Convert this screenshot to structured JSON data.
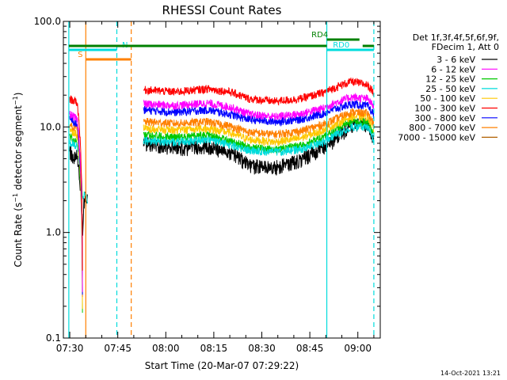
{
  "chart_data": {
    "type": "line",
    "title": "RHESSI Count Rates",
    "xlabel": "Start Time (20-Mar-07 07:29:22)",
    "ylabel_main": "Count Rate (s",
    "ylabel_sup1": "−1",
    "ylabel_mid": " detector segment",
    "ylabel_sup2": "−1",
    "ylabel_end": ")",
    "yscale": "log",
    "ylim": [
      0.1,
      100.0
    ],
    "yticks": [
      {
        "value": 100.0,
        "label": "100.0"
      },
      {
        "value": 10.0,
        "label": "10.0"
      },
      {
        "value": 1.0,
        "label": "1.0"
      },
      {
        "value": 0.1,
        "label": "0.1"
      }
    ],
    "xlim_minutes": [
      -2,
      97
    ],
    "xticks": [
      {
        "minute": 0,
        "label": "07:30"
      },
      {
        "minute": 15,
        "label": "07:45"
      },
      {
        "minute": 30,
        "label": "08:00"
      },
      {
        "minute": 45,
        "label": "08:15"
      },
      {
        "minute": 60,
        "label": "08:30"
      },
      {
        "minute": 75,
        "label": "08:45"
      },
      {
        "minute": 90,
        "label": "09:00"
      }
    ],
    "legend_header": [
      "Det 1f,3f,4f,5f,6f,9f,",
      "FDecim 1, Att 0"
    ],
    "series": [
      {
        "name": "3 - 6 keV",
        "color": "#000000",
        "profile": [
          [
            0,
            5.8
          ],
          [
            1.5,
            5.0
          ],
          [
            2.3,
            5.3
          ],
          [
            4.0,
            1.0
          ],
          [
            4.6,
            2.2
          ],
          [
            5.6,
            2.0
          ],
          [
            23,
            7.0
          ],
          [
            33,
            6.3
          ],
          [
            43,
            6.5
          ],
          [
            50,
            5.8
          ],
          [
            56,
            4.3
          ],
          [
            64,
            4.1
          ],
          [
            72,
            4.8
          ],
          [
            79,
            6.3
          ],
          [
            82,
            7.3
          ],
          [
            88,
            10.2
          ],
          [
            93,
            10.5
          ],
          [
            95,
            7.0
          ]
        ]
      },
      {
        "name": "6 - 12 keV",
        "color": "#ff00ff",
        "profile": [
          [
            0,
            13.2
          ],
          [
            1.5,
            12.3
          ],
          [
            2.3,
            11.8
          ],
          [
            4.0,
            0.0
          ],
          [
            4.6,
            0.0
          ],
          [
            5.6,
            0.0
          ],
          [
            23,
            16.5
          ],
          [
            33,
            16.0
          ],
          [
            43,
            16.8
          ],
          [
            50,
            15.5
          ],
          [
            56,
            13.2
          ],
          [
            64,
            12.5
          ],
          [
            72,
            13.3
          ],
          [
            79,
            15.0
          ],
          [
            82,
            16.5
          ],
          [
            88,
            19.2
          ],
          [
            93,
            18.5
          ],
          [
            95,
            15.5
          ]
        ]
      },
      {
        "name": "12 - 25 keV",
        "color": "#00c800",
        "profile": [
          [
            0,
            8.0
          ],
          [
            1.5,
            7.5
          ],
          [
            2.3,
            7.3
          ],
          [
            4.0,
            0.0
          ],
          [
            4.6,
            0.0
          ],
          [
            5.6,
            0.0
          ],
          [
            23,
            8.5
          ],
          [
            33,
            8.0
          ],
          [
            43,
            8.4
          ],
          [
            50,
            7.4
          ],
          [
            56,
            6.4
          ],
          [
            64,
            6.1
          ],
          [
            72,
            6.6
          ],
          [
            79,
            8.0
          ],
          [
            82,
            9.0
          ],
          [
            88,
            11.3
          ],
          [
            93,
            11.0
          ],
          [
            95,
            8.5
          ]
        ]
      },
      {
        "name": "25 - 50 keV",
        "color": "#00dcdc",
        "profile": [
          [
            0,
            7.2
          ],
          [
            1.5,
            6.8
          ],
          [
            2.3,
            6.7
          ],
          [
            4.0,
            2.2
          ],
          [
            4.6,
            2.3
          ],
          [
            5.6,
            2.0
          ],
          [
            23,
            7.4
          ],
          [
            33,
            7.2
          ],
          [
            43,
            7.6
          ],
          [
            50,
            6.8
          ],
          [
            56,
            6.0
          ],
          [
            64,
            5.8
          ],
          [
            72,
            6.1
          ],
          [
            79,
            7.2
          ],
          [
            82,
            8.1
          ],
          [
            88,
            10.0
          ],
          [
            93,
            10.0
          ],
          [
            95,
            7.4
          ]
        ]
      },
      {
        "name": "50 - 100 keV",
        "color": "#ffc800",
        "profile": [
          [
            0,
            9.3
          ],
          [
            1.5,
            8.8
          ],
          [
            2.3,
            8.5
          ],
          [
            4.0,
            0.0
          ],
          [
            4.6,
            0.0
          ],
          [
            5.6,
            0.0
          ],
          [
            23,
            9.7
          ],
          [
            33,
            9.3
          ],
          [
            43,
            9.7
          ],
          [
            50,
            8.8
          ],
          [
            56,
            7.6
          ],
          [
            64,
            7.2
          ],
          [
            72,
            7.8
          ],
          [
            79,
            9.3
          ],
          [
            82,
            10.2
          ],
          [
            88,
            12.5
          ],
          [
            93,
            12.5
          ],
          [
            95,
            9.5
          ]
        ]
      },
      {
        "name": "100 - 300 keV",
        "color": "#ff0000",
        "profile": [
          [
            0,
            18.5
          ],
          [
            1.5,
            17.5
          ],
          [
            2.3,
            17.0
          ],
          [
            4.0,
            0.0
          ],
          [
            4.6,
            0.0
          ],
          [
            5.6,
            0.0
          ],
          [
            23,
            22.5
          ],
          [
            33,
            21.5
          ],
          [
            43,
            23.0
          ],
          [
            50,
            21.5
          ],
          [
            56,
            18.5
          ],
          [
            64,
            17.5
          ],
          [
            72,
            18.5
          ],
          [
            79,
            21.0
          ],
          [
            82,
            23.0
          ],
          [
            88,
            27.0
          ],
          [
            93,
            25.0
          ],
          [
            95,
            21.0
          ]
        ]
      },
      {
        "name": "300 - 800 keV",
        "color": "#0000ff",
        "profile": [
          [
            0,
            11.8
          ],
          [
            1.5,
            11.0
          ],
          [
            2.3,
            10.5
          ],
          [
            4.0,
            0.0
          ],
          [
            4.6,
            0.0
          ],
          [
            5.6,
            0.0
          ],
          [
            23,
            14.5
          ],
          [
            33,
            13.8
          ],
          [
            43,
            14.5
          ],
          [
            50,
            13.2
          ],
          [
            56,
            11.8
          ],
          [
            64,
            11.2
          ],
          [
            72,
            11.8
          ],
          [
            79,
            13.3
          ],
          [
            82,
            14.5
          ],
          [
            88,
            16.5
          ],
          [
            93,
            15.8
          ],
          [
            95,
            13.0
          ]
        ]
      },
      {
        "name": "800 - 7000 keV",
        "color": "#ff8000",
        "profile": [
          [
            0,
            10.5
          ],
          [
            1.5,
            10.0
          ],
          [
            2.3,
            9.7
          ],
          [
            4.0,
            0.0
          ],
          [
            4.6,
            0.0
          ],
          [
            5.6,
            0.0
          ],
          [
            23,
            11.2
          ],
          [
            33,
            10.8
          ],
          [
            43,
            11.2
          ],
          [
            50,
            10.2
          ],
          [
            56,
            8.9
          ],
          [
            64,
            8.5
          ],
          [
            72,
            9.1
          ],
          [
            79,
            10.5
          ],
          [
            82,
            11.5
          ],
          [
            88,
            13.8
          ],
          [
            93,
            13.5
          ],
          [
            95,
            10.7
          ]
        ]
      },
      {
        "name": "7000 - 15000 keV",
        "color": "#b06000",
        "profile": []
      }
    ],
    "gaps_minutes": [
      [
        5.6,
        23
      ]
    ],
    "vertical_markers": [
      {
        "minute": -0.3,
        "color": "#00dcdc",
        "dashed": false
      },
      {
        "minute": 5.0,
        "color": "#ff8000",
        "dashed": false
      },
      {
        "minute": 14.7,
        "color": "#00dcdc",
        "dashed": true
      },
      {
        "minute": 19.2,
        "color": "#ff8000",
        "dashed": true
      },
      {
        "minute": 80.3,
        "color": "#00dcdc",
        "dashed": false
      },
      {
        "minute": 95.0,
        "color": "#00dcdc",
        "dashed": true
      }
    ],
    "flag_bars": [
      {
        "label": "S",
        "color": "#ff8000",
        "from": 5.0,
        "to": 19.2,
        "y": 75,
        "label_minute": 2.5
      },
      {
        "label": "N",
        "color": "#00dcdc",
        "from": -0.3,
        "to": 14.7,
        "y": 63,
        "label_minute": 16.3
      },
      {
        "label": "",
        "color": "#008000",
        "from": -0.3,
        "to": 80.3,
        "y": 58,
        "label_minute": 0
      },
      {
        "label": "RD4",
        "color": "#008000",
        "from": 80.3,
        "to": 90.5,
        "y": 50,
        "label_minute": 75.5
      },
      {
        "label": "RD0",
        "color": "#00dcdc",
        "from": 80.3,
        "to": 95.0,
        "y": 63,
        "label_minute": 82.2
      },
      {
        "label": "",
        "color": "#008000",
        "from": 91.5,
        "to": 95.0,
        "y": 58,
        "label_minute": 0
      }
    ]
  },
  "footer": {
    "date": "14-Oct-2021 13:21"
  }
}
